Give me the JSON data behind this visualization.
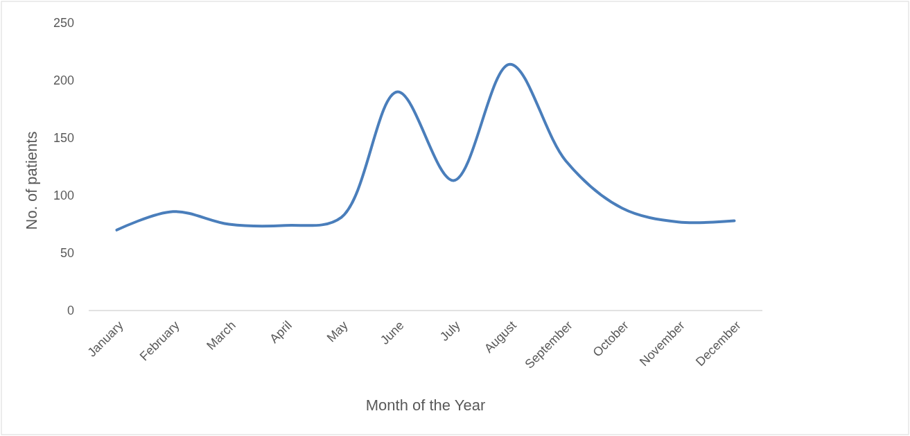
{
  "chart_data": {
    "type": "line",
    "xlabel": "Month of the Year",
    "ylabel": "No. of patients",
    "categories": [
      "January",
      "February",
      "March",
      "April",
      "May",
      "June",
      "July",
      "August",
      "September",
      "October",
      "November",
      "December"
    ],
    "series": [
      {
        "color": "#4a7ebb",
        "values": [
          70,
          86,
          75,
          74,
          81,
          190,
          113,
          214,
          130,
          89,
          77,
          78
        ]
      }
    ],
    "ylim": [
      0,
      250
    ],
    "yticks": [
      0,
      50,
      100,
      150,
      200,
      250
    ],
    "grid": false,
    "marker": "none",
    "line_style": "solid"
  }
}
